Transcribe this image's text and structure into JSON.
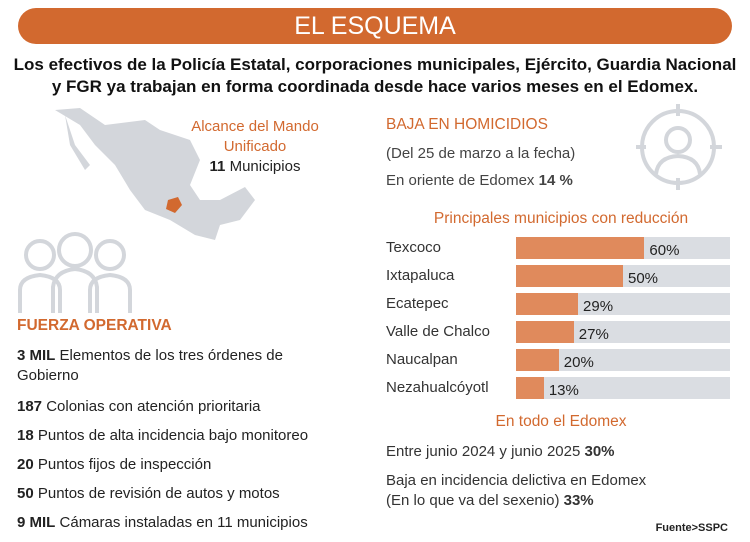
{
  "title": "EL ESQUEMA",
  "intro": "Los efectivos de la Policía Estatal, corporaciones municipales, Ejército, Guardia Nacional y FGR ya trabajan en forma coordinada desde hace varios meses en el Edomex.",
  "alcance": {
    "title1": "Alcance del Mando",
    "title2": "Unificado",
    "num": "11",
    "label": "Municipios"
  },
  "fuerza": {
    "title": "FUERZA OPERATIVA",
    "items": [
      {
        "num": "3 MIL",
        "text": "Elementos de los tres órdenes de",
        "text2": "Gobierno"
      },
      {
        "num": "187",
        "text": "Colonias con atención prioritaria"
      },
      {
        "num": "18",
        "text": "Puntos de alta incidencia bajo monitoreo"
      },
      {
        "num": "20",
        "text": "Puntos fijos de inspección"
      },
      {
        "num": "50",
        "text": "Puntos de revisión de autos y motos"
      },
      {
        "num": "9 MIL",
        "text": "Cámaras instaladas en 11 municipios"
      }
    ]
  },
  "baja": {
    "title": "BAJA EN HOMICIDIOS",
    "period": "(Del 25 de marzo a la fecha)",
    "oriente": "En oriente de Edomex",
    "oriente_val": "14 %"
  },
  "chart_data": {
    "type": "bar",
    "title": "Principales municipios con reducción",
    "categories": [
      "Texcoco",
      "Ixtapaluca",
      "Ecatepec",
      "Valle de Chalco",
      "Naucalpan",
      "Nezahualcóyotl"
    ],
    "values": [
      60,
      50,
      29,
      27,
      20,
      13
    ],
    "labels": [
      "60%",
      "50%",
      "29%",
      "27%",
      "20%",
      "13%"
    ],
    "xlim": [
      0,
      100
    ],
    "orientation": "horizontal"
  },
  "edomex": {
    "title": "En todo el Edomex",
    "line1": "Entre junio 2024  y junio 2025",
    "line1_val": "30%",
    "line2": "Baja en incidencia delictiva en Edomex",
    "line3": "(En lo que va del sexenio)",
    "line3_val": "33%"
  },
  "source": "Fuente>SSPC",
  "colors": {
    "accent": "#d2692f",
    "bar": "#e08a5c",
    "track": "#dadde2",
    "icon": "#d3d6db"
  }
}
